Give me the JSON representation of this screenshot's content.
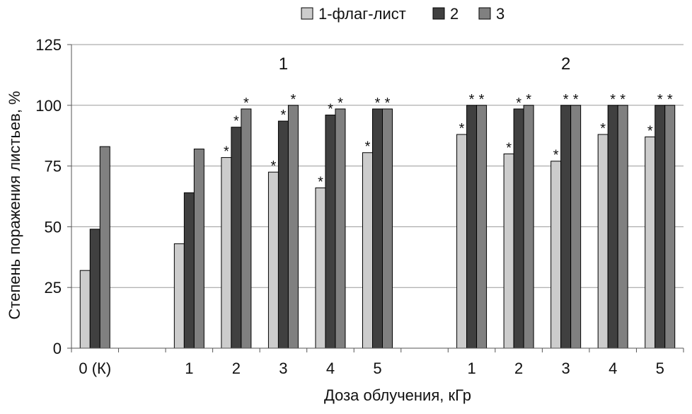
{
  "chart_data": {
    "type": "bar",
    "xlabel": "Доза облучения, кГр",
    "ylabel": "Степень поражения листьев, %",
    "ylim": [
      0,
      125
    ],
    "yticks": [
      "0",
      "25",
      "50",
      "75",
      "100",
      "125"
    ],
    "grid": true,
    "legend_position": "top",
    "series": [
      {
        "name": "1-флаг-лист",
        "color": "#cccccc"
      },
      {
        "name": "2",
        "color": "#404040"
      },
      {
        "name": "3",
        "color": "#808080"
      }
    ],
    "group_labels": [
      "1",
      "2"
    ],
    "categories": [
      "0 (К)",
      "",
      "1",
      "2",
      "3",
      "4",
      "5",
      "",
      "1",
      "2",
      "3",
      "4",
      "5"
    ],
    "values": [
      [
        32,
        49,
        83
      ],
      null,
      [
        43,
        64,
        82
      ],
      [
        78.5,
        91,
        98.5
      ],
      [
        72.5,
        93.5,
        100
      ],
      [
        66,
        96,
        98.5
      ],
      [
        80.5,
        98.5,
        98.5
      ],
      null,
      [
        88,
        100,
        100
      ],
      [
        80,
        98.5,
        100
      ],
      [
        77,
        100,
        100
      ],
      [
        88,
        100,
        100
      ],
      [
        87,
        100,
        100
      ]
    ],
    "significance_marker": "*",
    "stars": [
      [
        false,
        false,
        false
      ],
      null,
      [
        false,
        false,
        false
      ],
      [
        true,
        true,
        true
      ],
      [
        true,
        true,
        true
      ],
      [
        true,
        true,
        true
      ],
      [
        true,
        true,
        true
      ],
      null,
      [
        true,
        true,
        true
      ],
      [
        true,
        true,
        true
      ],
      [
        true,
        true,
        true
      ],
      [
        true,
        true,
        true
      ],
      [
        true,
        true,
        true
      ]
    ]
  }
}
